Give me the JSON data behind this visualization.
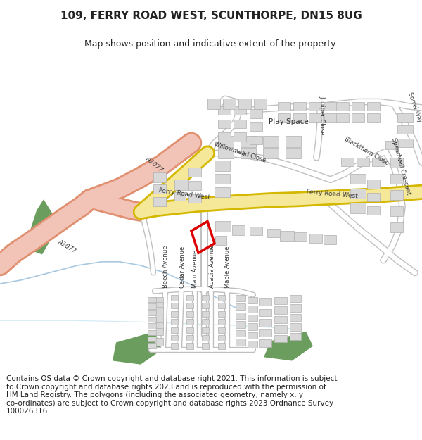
{
  "title": "109, FERRY ROAD WEST, SCUNTHORPE, DN15 8UG",
  "subtitle": "Map shows position and indicative extent of the property.",
  "footer_line1": "Contains OS data © Crown copyright and database right 2021. This information is subject",
  "footer_line2": "to Crown copyright and database rights 2023 and is reproduced with the permission of",
  "footer_line3": "HM Land Registry. The polygons (including the associated geometry, namely x, y",
  "footer_line4": "co-ordinates) are subject to Crown copyright and database rights 2023 Ordnance Survey",
  "footer_line5": "100026316.",
  "title_fontsize": 11,
  "subtitle_fontsize": 9,
  "footer_fontsize": 7.5,
  "map_bg": "#f5f5f5",
  "road_yellow": "#f5e899",
  "road_yellow_border": "#d4b800",
  "road_pink": "#f2c4b8",
  "road_pink_dark": "#e09070",
  "road_white": "#ffffff",
  "road_gray_border": "#c0c0c0",
  "road_gray_inner": "#e8e8e8",
  "building_fill": "#d8d8d8",
  "building_border": "#b0b0b0",
  "green_fill": "#6b9e5e",
  "blue_line": "#a8c8e0",
  "red_polygon_color": "#dd0000",
  "text_color": "#222222",
  "label_color": "#333333"
}
